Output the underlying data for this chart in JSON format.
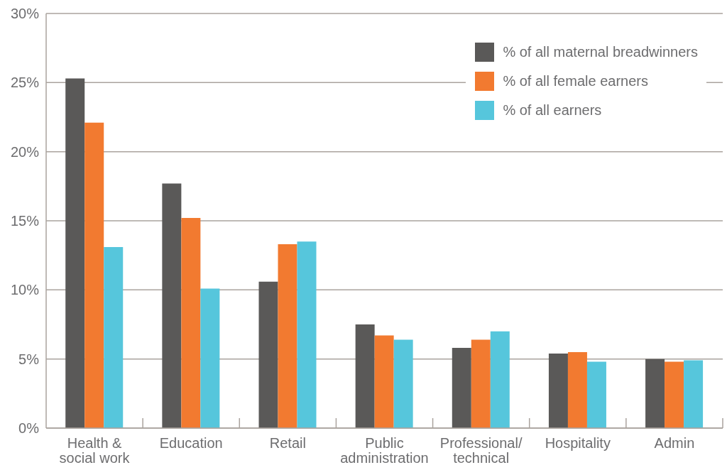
{
  "chart_data": {
    "type": "bar",
    "categories": [
      "Health & social work",
      "Education",
      "Retail",
      "Public administration",
      "Professional/technical",
      "Hospitality",
      "Admin"
    ],
    "series": [
      {
        "name": "% of all maternal breadwinners",
        "color": "#5a5958",
        "values": [
          25.3,
          17.7,
          10.6,
          7.5,
          5.8,
          5.4,
          5.0
        ]
      },
      {
        "name": "% of all female earners",
        "color": "#f27a30",
        "values": [
          22.1,
          15.2,
          13.3,
          6.7,
          6.4,
          5.5,
          4.8
        ]
      },
      {
        "name": "% of all earners",
        "color": "#56c6dc",
        "values": [
          13.1,
          10.1,
          13.5,
          6.4,
          7.0,
          4.8,
          4.9
        ]
      }
    ],
    "ylim": [
      0,
      30
    ],
    "yticks": [
      {
        "value": 0,
        "label": "0%"
      },
      {
        "value": 5,
        "label": "5%"
      },
      {
        "value": 10,
        "label": "10%"
      },
      {
        "value": 15,
        "label": "15%"
      },
      {
        "value": 20,
        "label": "20%"
      },
      {
        "value": 25,
        "label": "25%"
      },
      {
        "value": 30,
        "label": "30%"
      }
    ],
    "grid": "y",
    "legend": "top right"
  }
}
